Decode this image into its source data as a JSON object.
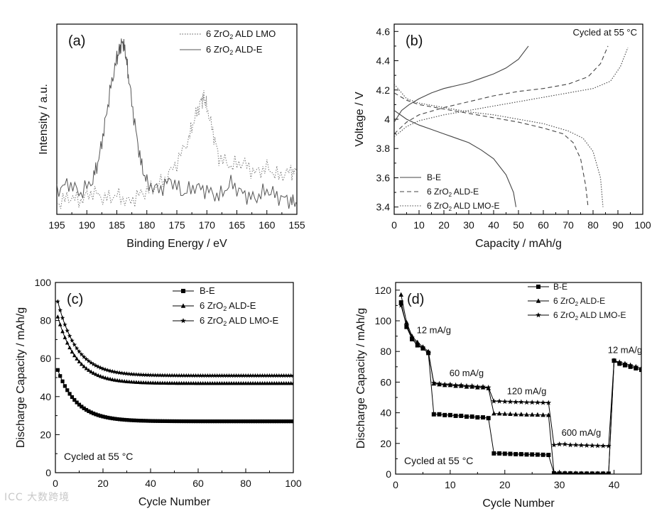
{
  "watermark": "ICC 大数跨境",
  "chart_data": [
    {
      "panel": "(a)",
      "type": "line",
      "xlabel": "Binding Energy / eV",
      "ylabel": "Intensity / a.u.",
      "xlim": [
        195,
        155
      ],
      "x_reversed": true,
      "xticks": [
        195,
        190,
        185,
        180,
        175,
        170,
        165,
        160,
        155
      ],
      "legend_position": "top-right",
      "series": [
        {
          "name": "6 ZrO2 ALD LMO",
          "style": "dotted",
          "x": [
            195,
            193,
            191,
            189,
            187,
            185,
            183,
            181,
            179,
            177,
            175,
            173,
            172,
            171,
            170.5,
            170,
            169,
            168,
            166,
            164,
            162,
            160,
            158,
            156,
            155
          ],
          "y": [
            0.06,
            0.1,
            0.08,
            0.13,
            0.09,
            0.11,
            0.07,
            0.12,
            0.15,
            0.2,
            0.3,
            0.44,
            0.56,
            0.65,
            0.68,
            0.62,
            0.48,
            0.33,
            0.28,
            0.3,
            0.24,
            0.27,
            0.22,
            0.25,
            0.24
          ]
        },
        {
          "name": "6 ZrO2 ALD-E",
          "style": "solid",
          "x": [
            195,
            193,
            191,
            189,
            188,
            187,
            186,
            185,
            184.5,
            184,
            183.5,
            183,
            182,
            181,
            180,
            178,
            176,
            174,
            172,
            170,
            168,
            166,
            164,
            162,
            160,
            158,
            156,
            155
          ],
          "y": [
            0.14,
            0.18,
            0.12,
            0.2,
            0.32,
            0.52,
            0.74,
            0.9,
            0.96,
            1.0,
            0.92,
            0.78,
            0.52,
            0.3,
            0.18,
            0.14,
            0.2,
            0.12,
            0.16,
            0.14,
            0.1,
            0.18,
            0.12,
            0.09,
            0.14,
            0.1,
            0.08,
            0.06
          ]
        }
      ]
    },
    {
      "panel": "(b)",
      "type": "line",
      "annotation": "Cycled at 55 °C",
      "xlabel": "Capacity / mAh/g",
      "ylabel": "Voltage / V",
      "xlim": [
        0,
        100
      ],
      "ylim": [
        3.35,
        4.65
      ],
      "xticks": [
        0,
        10,
        20,
        30,
        40,
        50,
        60,
        70,
        80,
        90,
        100
      ],
      "yticks": [
        3.4,
        3.6,
        3.8,
        4.0,
        4.2,
        4.4,
        4.6
      ],
      "legend_position": "bottom-left",
      "series": [
        {
          "name": "B-E",
          "style": "solid",
          "charge": {
            "x": [
              0,
              3,
              6,
              10,
              15,
              20,
              25,
              30,
              35,
              40,
              45,
              50,
              54
            ],
            "y": [
              3.98,
              4.06,
              4.1,
              4.14,
              4.18,
              4.21,
              4.23,
              4.25,
              4.28,
              4.31,
              4.35,
              4.41,
              4.5
            ]
          },
          "discharge": {
            "x": [
              0,
              5,
              10,
              15,
              20,
              25,
              30,
              35,
              40,
              45,
              48,
              49
            ],
            "y": [
              4.06,
              4.0,
              3.96,
              3.93,
              3.9,
              3.87,
              3.84,
              3.79,
              3.73,
              3.62,
              3.5,
              3.4
            ]
          }
        },
        {
          "name": "6 ZrO2 ALD-E",
          "style": "dashed",
          "charge": {
            "x": [
              0,
              5,
              10,
              20,
              30,
              40,
              50,
              60,
              70,
              78,
              83,
              86
            ],
            "y": [
              3.9,
              3.98,
              4.03,
              4.08,
              4.12,
              4.16,
              4.19,
              4.21,
              4.24,
              4.29,
              4.38,
              4.5
            ]
          },
          "discharge": {
            "x": [
              0,
              5,
              10,
              20,
              30,
              40,
              50,
              60,
              68,
              72,
              75,
              77,
              78
            ],
            "y": [
              4.18,
              4.13,
              4.1,
              4.07,
              4.04,
              4.01,
              3.98,
              3.94,
              3.9,
              3.84,
              3.73,
              3.55,
              3.4
            ]
          }
        },
        {
          "name": "6 ZrO2 ALD LMO-E",
          "style": "dotted",
          "charge": {
            "x": [
              0,
              5,
              10,
              20,
              30,
              40,
              50,
              60,
              70,
              80,
              87,
              91,
              94
            ],
            "y": [
              3.88,
              3.95,
              3.99,
              4.03,
              4.06,
              4.09,
              4.12,
              4.15,
              4.18,
              4.21,
              4.26,
              4.36,
              4.49
            ]
          },
          "discharge": {
            "x": [
              0,
              5,
              10,
              20,
              30,
              40,
              50,
              60,
              70,
              76,
              80,
              83,
              84
            ],
            "y": [
              4.24,
              4.14,
              4.11,
              4.08,
              4.05,
              4.03,
              4.0,
              3.97,
              3.92,
              3.87,
              3.78,
              3.6,
              3.4
            ]
          }
        }
      ]
    },
    {
      "panel": "(c)",
      "type": "scatter",
      "annotation": "Cycled at 55 °C",
      "xlabel": "Cycle Number",
      "ylabel": "Discharge Capacity / mAh/g",
      "xlim": [
        0,
        100
      ],
      "ylim": [
        0,
        100
      ],
      "xticks": [
        0,
        20,
        40,
        60,
        80,
        100
      ],
      "yticks": [
        0,
        20,
        40,
        60,
        80,
        100
      ],
      "legend_position": "top-right",
      "series": [
        {
          "name": "B-E",
          "marker": "square",
          "model": {
            "final": 26,
            "amp": 27,
            "tau": 8,
            "floor": 0.02,
            "last": 27
          }
        },
        {
          "name": "6 ZrO2 ALD-E",
          "marker": "triangle",
          "model": {
            "final": 45,
            "amp": 35,
            "tau": 8,
            "floor": 0.02,
            "last": 47
          }
        },
        {
          "name": "6 ZrO2 ALD LMO-E",
          "marker": "star",
          "model": {
            "final": 49,
            "amp": 39,
            "tau": 8,
            "floor": 0.02,
            "last": 51
          }
        }
      ]
    },
    {
      "panel": "(d)",
      "type": "scatter",
      "annotation": "Cycled at 55 °C",
      "xlabel": "Cycle Number",
      "ylabel": "Discharge Capacity / mAh/g",
      "xlim": [
        0,
        45
      ],
      "ylim": [
        0,
        125
      ],
      "xticks": [
        0,
        10,
        20,
        30,
        40
      ],
      "yticks": [
        0,
        20,
        40,
        60,
        80,
        100,
        120
      ],
      "legend_position": "top-right",
      "rate_labels": [
        {
          "text": "12 mA/g",
          "at_x": 7,
          "at_y": 92
        },
        {
          "text": "60 mA/g",
          "at_x": 13,
          "at_y": 64
        },
        {
          "text": "120 mA/g",
          "at_x": 24,
          "at_y": 52
        },
        {
          "text": "600 mA/g",
          "at_x": 34,
          "at_y": 25
        },
        {
          "text": "12 mA/g",
          "at_x": 42,
          "at_y": 79
        }
      ],
      "series": [
        {
          "name": "B-E",
          "marker": "square",
          "x": [
            1,
            2,
            3,
            4,
            5,
            6,
            7,
            8,
            9,
            10,
            11,
            12,
            13,
            14,
            15,
            16,
            17,
            18,
            19,
            20,
            21,
            22,
            23,
            24,
            25,
            26,
            27,
            28,
            29,
            30,
            31,
            32,
            33,
            34,
            35,
            36,
            37,
            38,
            39,
            40,
            41,
            42,
            43,
            44,
            45
          ],
          "y": [
            112,
            96,
            88,
            84,
            82,
            79,
            39,
            39,
            38.5,
            38.5,
            38,
            38,
            37.5,
            37.5,
            37,
            37,
            36.5,
            13.5,
            13.5,
            13.3,
            13.2,
            13,
            13,
            12.8,
            12.8,
            12.7,
            12.6,
            12.5,
            0.5,
            0.4,
            0.4,
            0.4,
            0.3,
            0.3,
            0.3,
            0.3,
            0.3,
            0.3,
            0.3,
            74,
            72,
            71,
            70,
            69,
            68
          ]
        },
        {
          "name": "6 ZrO2 ALD-E",
          "marker": "triangle",
          "x": [
            1,
            2,
            3,
            4,
            5,
            6,
            7,
            8,
            9,
            10,
            11,
            12,
            13,
            14,
            15,
            16,
            17,
            18,
            19,
            20,
            21,
            22,
            23,
            24,
            25,
            26,
            27,
            28,
            29,
            30,
            31,
            32,
            33,
            34,
            35,
            36,
            37,
            38,
            39,
            40,
            41,
            42,
            43,
            44,
            45
          ],
          "y": [
            117,
            99,
            90,
            86,
            83,
            80,
            59,
            58.5,
            58,
            58,
            57.5,
            57.5,
            57,
            57,
            56.5,
            56.5,
            56,
            39.5,
            39.5,
            39.3,
            39.2,
            39,
            39,
            38.8,
            38.8,
            38.7,
            38.6,
            38.5,
            1,
            0.8,
            0.7,
            0.6,
            0.6,
            0.5,
            0.5,
            0.5,
            0.5,
            0.5,
            0.5,
            74,
            73,
            72,
            71,
            70,
            69
          ]
        },
        {
          "name": "6 ZrO2 ALD LMO-E",
          "marker": "star",
          "x": [
            1,
            2,
            3,
            4,
            5,
            6,
            7,
            8,
            9,
            10,
            11,
            12,
            13,
            14,
            15,
            16,
            17,
            18,
            19,
            20,
            21,
            22,
            23,
            24,
            25,
            26,
            27,
            28,
            29,
            30,
            31,
            32,
            33,
            34,
            35,
            36,
            37,
            38,
            39,
            40,
            41,
            42,
            43,
            44,
            45
          ],
          "y": [
            110,
            97,
            89,
            85,
            82,
            79,
            59.5,
            59,
            58.5,
            58.5,
            58,
            58,
            57.5,
            57.5,
            57,
            57,
            56.5,
            47.5,
            47.5,
            47.3,
            47.2,
            47,
            47,
            46.8,
            46.8,
            46.7,
            46.6,
            46.5,
            19,
            19.5,
            19.5,
            19,
            19,
            18.8,
            18.7,
            18.6,
            18.5,
            18.4,
            18.3,
            74,
            73,
            72,
            71,
            70,
            69
          ]
        }
      ]
    }
  ]
}
